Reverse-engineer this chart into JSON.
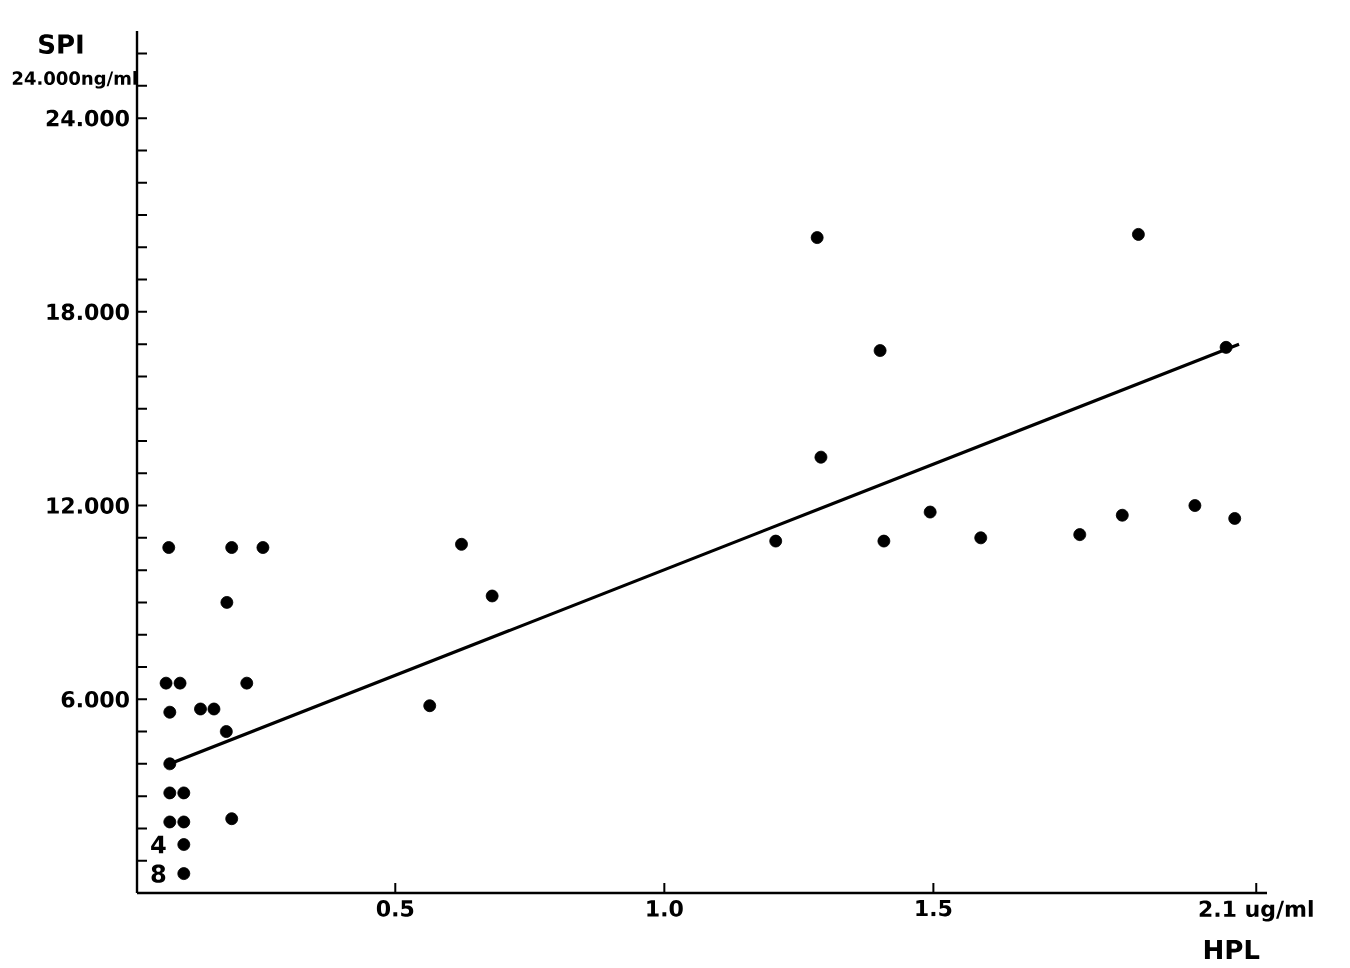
{
  "chart_data": {
    "type": "scatter",
    "ylabel": "SPI",
    "xlabel": "HPL",
    "annotations": [
      "24.000ng/ml",
      {
        "text": "4",
        "x": 0.107,
        "y": 1.5
      },
      {
        "text": "8",
        "x": 0.107,
        "y": 0.6
      }
    ],
    "xlim": [
      0.02,
      2.12
    ],
    "ylim": [
      0,
      26.7
    ],
    "xticks": [
      0.5,
      {
        "value": 1.0,
        "label": "1.0"
      },
      1.5,
      {
        "value": 2.1,
        "label": "2.1 ug/ml"
      }
    ],
    "yticks": [
      {
        "value": 1,
        "label": null
      },
      {
        "value": 2,
        "label": null
      },
      {
        "value": 3,
        "label": null
      },
      {
        "value": 4,
        "label": null
      },
      {
        "value": 5,
        "label": null
      },
      {
        "value": 6,
        "label": "6.000"
      },
      {
        "value": 7,
        "label": null
      },
      {
        "value": 8,
        "label": null
      },
      {
        "value": 9,
        "label": null
      },
      {
        "value": 10,
        "label": null
      },
      {
        "value": 11,
        "label": null
      },
      {
        "value": 12,
        "label": "12.000"
      },
      {
        "value": 13,
        "label": null
      },
      {
        "value": 14,
        "label": null
      },
      {
        "value": 15,
        "label": null
      },
      {
        "value": 16,
        "label": null
      },
      {
        "value": 17,
        "label": null
      },
      {
        "value": 18,
        "label": "18.000"
      },
      {
        "value": 19,
        "label": null
      },
      {
        "value": 20,
        "label": null
      },
      {
        "value": 21,
        "label": null
      },
      {
        "value": 22,
        "label": null
      },
      {
        "value": 23,
        "label": null
      },
      {
        "value": 24,
        "label": "24.000"
      },
      {
        "value": 25,
        "label": null
      },
      {
        "value": 26,
        "label": null
      }
    ],
    "marker": "circle",
    "series": [
      {
        "color": "#000000",
        "x": [
          0.079,
          0.074,
          0.1,
          0.081,
          0.138,
          0.163,
          0.196,
          0.254,
          0.187,
          0.224,
          0.186,
          0.081,
          0.081,
          0.107,
          0.081,
          0.107,
          0.196,
          0.107,
          0.107,
          0.564,
          0.623,
          0.68,
          1.207,
          1.284,
          1.291,
          1.401,
          1.408,
          1.494,
          1.588,
          1.772,
          1.851,
          1.881,
          1.986,
          2.06,
          2.044
        ],
        "values": [
          10.7,
          6.5,
          6.5,
          5.6,
          5.7,
          5.7,
          10.7,
          10.7,
          9.0,
          6.5,
          5.0,
          4.0,
          3.1,
          3.1,
          2.2,
          2.2,
          2.3,
          1.5,
          0.6,
          5.8,
          10.8,
          9.2,
          10.9,
          20.3,
          13.5,
          16.8,
          10.9,
          11.8,
          11.0,
          11.1,
          11.7,
          20.4,
          12.0,
          11.6,
          16.9
        ]
      },
      {
        "type": "line",
        "color": "#000000",
        "marker": "none",
        "line_style": "solid",
        "x": [
          0.081,
          2.068
        ],
        "values": [
          4.0,
          17.0
        ]
      }
    ]
  }
}
